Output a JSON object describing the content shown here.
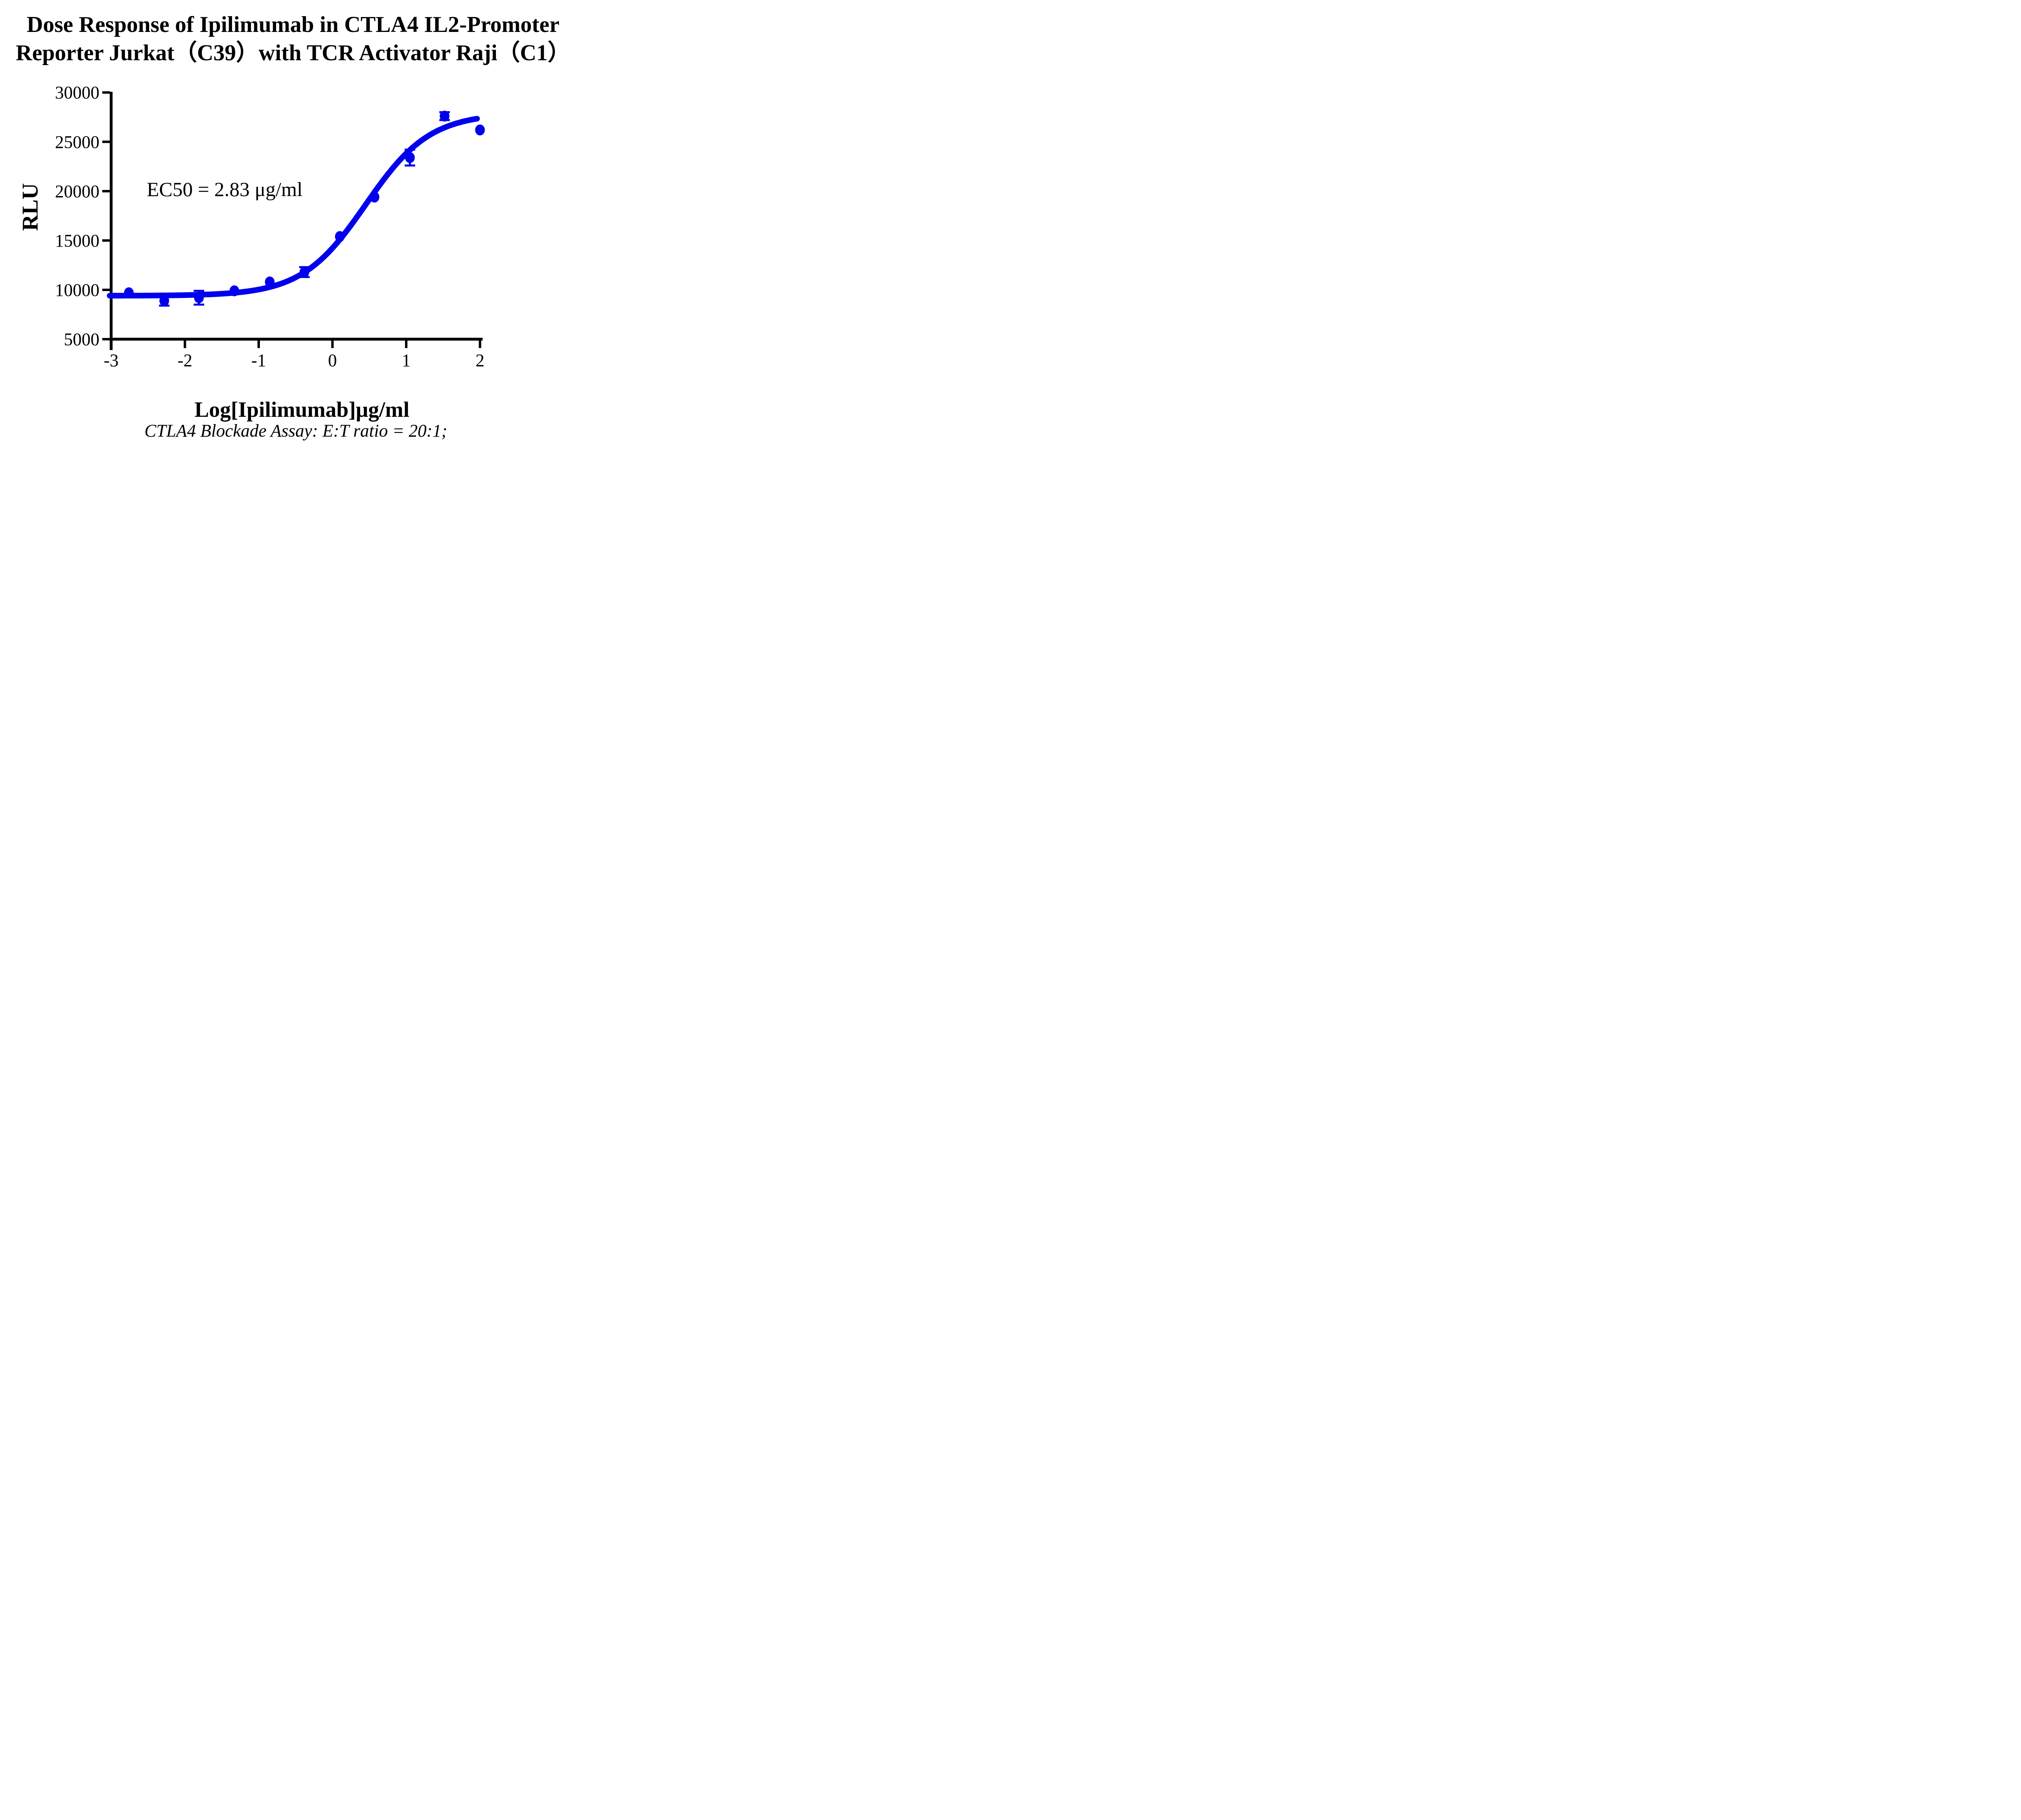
{
  "title": {
    "line1": "Dose Response of Ipilimumab in CTLA4 IL2-Promoter",
    "line2": "Reporter Jurkat（C39）with TCR Activator Raji（C1）"
  },
  "annotation": {
    "ec50": "EC50 = 2.83 μg/ml"
  },
  "axis": {
    "x_label": "Log[Ipilimumab]μg/ml",
    "y_label": "RLU"
  },
  "caption": "CTLA4 Blockade Assay: E:T ratio = 20:1;",
  "colors": {
    "series_blue": "#0000EE",
    "axis_black": "#000000",
    "background": "#FFFFFF"
  },
  "chart_data": {
    "type": "scatter",
    "title": "Dose Response of Ipilimumab in CTLA4 IL2-Promoter Reporter Jurkat（C39）with TCR Activator Raji（C1）",
    "xlabel": "Log[Ipilimumab]μg/ml",
    "ylabel": "RLU",
    "xlim": [
      -3,
      2
    ],
    "ylim": [
      5000,
      30000
    ],
    "x_ticks": [
      -3,
      -2,
      -1,
      0,
      1,
      2
    ],
    "y_ticks": [
      5000,
      10000,
      15000,
      20000,
      25000,
      30000
    ],
    "grid": false,
    "legend": false,
    "series": [
      {
        "name": "Ipilimumab",
        "color": "#0000EE",
        "marker": "circle",
        "points": [
          {
            "log_conc": -2.76,
            "rlu": 9700,
            "err": null
          },
          {
            "log_conc": -2.28,
            "rlu": 8900,
            "err": 500
          },
          {
            "log_conc": -1.81,
            "rlu": 9200,
            "err": 700
          },
          {
            "log_conc": -1.33,
            "rlu": 9900,
            "err": null
          },
          {
            "log_conc": -0.85,
            "rlu": 10800,
            "err": null
          },
          {
            "log_conc": -0.38,
            "rlu": 11800,
            "err": 500
          },
          {
            "log_conc": 0.1,
            "rlu": 15400,
            "err": null
          },
          {
            "log_conc": 0.57,
            "rlu": 19400,
            "err": null
          },
          {
            "log_conc": 1.05,
            "rlu": 23400,
            "err": 800
          },
          {
            "log_conc": 1.52,
            "rlu": 27600,
            "err": 400
          },
          {
            "log_conc": 2.0,
            "rlu": 26200,
            "err": null
          }
        ]
      }
    ],
    "fit_curve": {
      "model": "4PL sigmoid",
      "bottom": 9400,
      "top": 27900,
      "log_ec50": 0.452,
      "hill_slope": 1.0,
      "ec50_ug_ml": 2.83
    }
  }
}
